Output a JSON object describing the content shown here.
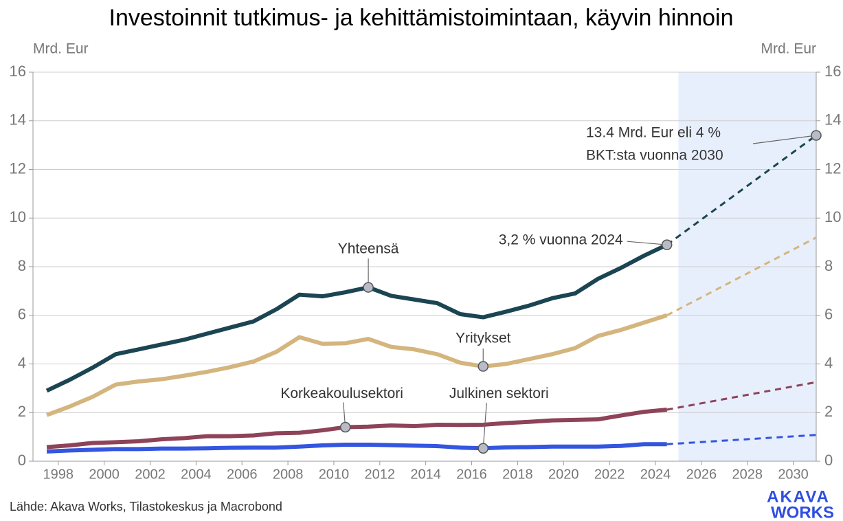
{
  "chart_data": {
    "type": "line",
    "title": "Investoinnit tutkimus- ja kehittämistoimintaan, käyvin hinnoin",
    "y_label": "Mrd. Eur",
    "y2_label": "Mrd. Eur",
    "source": "Lähde: Akava Works, Tilastokeskus ja Macrobond",
    "logo": [
      "AKAVA",
      "WORKS"
    ],
    "x": [
      1997.5,
      1998.5,
      1999.5,
      2000.5,
      2001.5,
      2002.5,
      2003.5,
      2004.5,
      2005.5,
      2006.5,
      2007.5,
      2008.5,
      2009.5,
      2010.5,
      2011.5,
      2012.5,
      2013.5,
      2014.5,
      2015.5,
      2016.5,
      2017.5,
      2018.5,
      2019.5,
      2020.5,
      2021.5,
      2022.5,
      2023.5,
      2024.5
    ],
    "series": [
      {
        "name": "Yhteensä",
        "color": "#1b4552",
        "values": [
          2.9,
          3.35,
          3.85,
          4.4,
          4.6,
          4.8,
          5.0,
          5.25,
          5.5,
          5.75,
          6.25,
          6.85,
          6.78,
          6.95,
          7.15,
          6.8,
          6.65,
          6.5,
          6.05,
          5.92,
          6.15,
          6.4,
          6.7,
          6.9,
          7.5,
          7.95,
          8.45,
          8.9
        ]
      },
      {
        "name": "Yritykset",
        "color": "#d4b57e",
        "values": [
          1.9,
          2.25,
          2.65,
          3.15,
          3.28,
          3.37,
          3.52,
          3.68,
          3.87,
          4.1,
          4.5,
          5.1,
          4.83,
          4.85,
          5.03,
          4.7,
          4.6,
          4.4,
          4.05,
          3.9,
          4.0,
          4.2,
          4.4,
          4.65,
          5.15,
          5.4,
          5.7,
          6.0
        ]
      },
      {
        "name": "Korkeakoulusektori",
        "color": "#8e4358",
        "values": [
          0.58,
          0.65,
          0.75,
          0.78,
          0.82,
          0.9,
          0.95,
          1.03,
          1.03,
          1.06,
          1.15,
          1.17,
          1.27,
          1.4,
          1.42,
          1.47,
          1.44,
          1.5,
          1.49,
          1.5,
          1.57,
          1.62,
          1.68,
          1.7,
          1.72,
          1.88,
          2.03,
          2.12
        ]
      },
      {
        "name": "Julkinen sektori",
        "color": "#3355e0",
        "values": [
          0.4,
          0.44,
          0.47,
          0.5,
          0.5,
          0.52,
          0.52,
          0.53,
          0.55,
          0.56,
          0.56,
          0.6,
          0.65,
          0.68,
          0.68,
          0.66,
          0.64,
          0.62,
          0.56,
          0.53,
          0.57,
          0.58,
          0.6,
          0.6,
          0.6,
          0.63,
          0.7,
          0.7
        ]
      }
    ],
    "forecast": {
      "x": [
        2024.5,
        2031
      ],
      "shade": [
        2025,
        2031
      ],
      "shade_color": "#e8effc",
      "series": [
        {
          "values": [
            8.9,
            13.4
          ]
        },
        {
          "values": [
            6.0,
            9.2
          ]
        },
        {
          "values": [
            2.12,
            3.25
          ]
        },
        {
          "values": [
            0.7,
            1.08
          ]
        }
      ]
    },
    "annotations": [
      {
        "text": [
          "Yhteensä"
        ],
        "x": 2011.5,
        "y": 7.15
      },
      {
        "text": [
          "Yritykset"
        ],
        "x": 2016.5,
        "y": 3.9
      },
      {
        "text": [
          "Korkeakoulusektori"
        ],
        "x": 2010.5,
        "y": 1.4
      },
      {
        "text": [
          "Julkinen sektori"
        ],
        "x": 2016.5,
        "y": 0.53
      },
      {
        "text": [
          "3,2 % vuonna 2024"
        ],
        "x": 2024.5,
        "y": 8.9
      },
      {
        "text": [
          "13.4 Mrd. Eur eli 4 %",
          "BKT:sta vuonna 2030"
        ],
        "x": 2031,
        "y": 13.4
      }
    ],
    "xlim": [
      1996.9,
      2031.0
    ],
    "xticks": [
      1998,
      2000,
      2002,
      2004,
      2006,
      2008,
      2010,
      2012,
      2014,
      2016,
      2018,
      2020,
      2022,
      2024,
      2026,
      2028,
      2030
    ],
    "ylim": [
      0,
      16
    ],
    "yticks": [
      0,
      2,
      4,
      6,
      8,
      10,
      12,
      14,
      16
    ],
    "grid": true
  }
}
